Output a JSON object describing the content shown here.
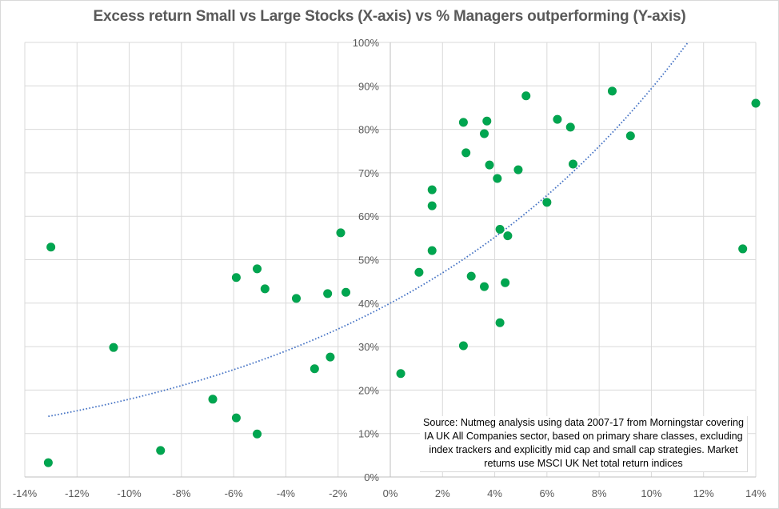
{
  "chart_data": {
    "type": "scatter",
    "title": "Excess return Small vs Large Stocks (X-axis) vs % Managers outperforming  (Y-axis)",
    "xlabel": "",
    "ylabel": "",
    "xlim": [
      -14,
      14
    ],
    "ylim": [
      0,
      100
    ],
    "x_ticks": [
      -14,
      -12,
      -10,
      -8,
      -6,
      -4,
      -2,
      0,
      2,
      4,
      6,
      8,
      10,
      12,
      14
    ],
    "x_tick_labels": [
      "-14%",
      "-12%",
      "-10%",
      "-8%",
      "-6%",
      "-4%",
      "-2%",
      "0%",
      "2%",
      "4%",
      "6%",
      "8%",
      "10%",
      "12%",
      "14%"
    ],
    "y_ticks": [
      0,
      10,
      20,
      30,
      40,
      50,
      60,
      70,
      80,
      90,
      100
    ],
    "y_tick_labels": [
      "0%",
      "10%",
      "20%",
      "30%",
      "40%",
      "50%",
      "60%",
      "70%",
      "80%",
      "90%",
      "100%"
    ],
    "grid": true,
    "legend": "none",
    "marker_color": "#00A650",
    "trendline_color": "#4472C4",
    "series": [
      {
        "name": "Managers outperforming",
        "points": [
          [
            -13.1,
            3.3
          ],
          [
            -13.0,
            52.9
          ],
          [
            -10.6,
            29.8
          ],
          [
            -8.8,
            6.1
          ],
          [
            -6.8,
            17.9
          ],
          [
            -5.9,
            45.9
          ],
          [
            -5.9,
            13.6
          ],
          [
            -5.1,
            47.9
          ],
          [
            -5.1,
            9.9
          ],
          [
            -4.8,
            43.3
          ],
          [
            -3.6,
            41.1
          ],
          [
            -2.9,
            24.9
          ],
          [
            -2.4,
            42.2
          ],
          [
            -2.3,
            27.6
          ],
          [
            -1.9,
            56.2
          ],
          [
            -1.7,
            42.5
          ],
          [
            0.4,
            23.8
          ],
          [
            1.1,
            47.1
          ],
          [
            1.6,
            52.1
          ],
          [
            1.6,
            62.4
          ],
          [
            1.6,
            66.1
          ],
          [
            2.8,
            30.2
          ],
          [
            2.8,
            81.6
          ],
          [
            2.9,
            74.6
          ],
          [
            3.1,
            46.2
          ],
          [
            3.6,
            43.8
          ],
          [
            3.6,
            79.0
          ],
          [
            3.7,
            81.9
          ],
          [
            3.8,
            71.8
          ],
          [
            4.1,
            68.7
          ],
          [
            4.2,
            35.5
          ],
          [
            4.2,
            57.0
          ],
          [
            4.4,
            44.7
          ],
          [
            4.5,
            55.5
          ],
          [
            4.9,
            70.7
          ],
          [
            5.2,
            87.7
          ],
          [
            6.0,
            63.2
          ],
          [
            6.4,
            82.3
          ],
          [
            6.9,
            80.5
          ],
          [
            7.0,
            72.0
          ],
          [
            8.5,
            88.8
          ],
          [
            9.2,
            78.5
          ],
          [
            13.5,
            52.5
          ],
          [
            14.0,
            86.0
          ]
        ]
      }
    ],
    "trendline": {
      "type": "exponential",
      "style": "dotted",
      "a": 40.0,
      "b": 0.0804,
      "x_start": -13.1,
      "x_end": 11.4
    },
    "annotation": "Source: Nutmeg analysis using data  2007-17  from Morningstar covering IA UK All Companies sector, based on primary share classes, excluding index trackers and explicitly mid cap and small cap strategies. Market returns use MSCI UK  Net total return indices"
  }
}
